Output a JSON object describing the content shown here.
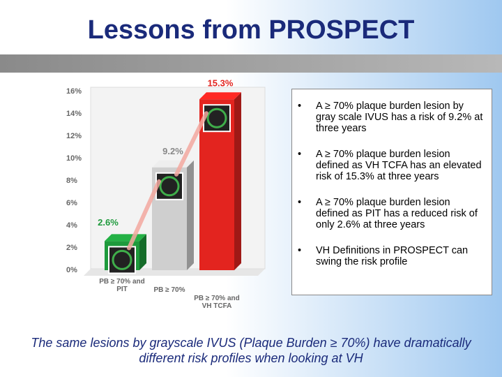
{
  "slide": {
    "title": "Lessons from PROSPECT",
    "bullets": [
      "A ≥ 70% plaque burden lesion by gray scale IVUS has a risk of 9.2% at three years",
      "A ≥ 70% plaque burden lesion defined as VH TCFA has an elevated risk of 15.3% at three years",
      "A ≥ 70% plaque burden lesion defined as PIT has a reduced risk of only 2.6% at three years",
      "VH Definitions in PROSPECT can swing the risk profile"
    ],
    "caption": "The same lesions by grayscale IVUS (Plaque Burden ≥ 70%) have dramatically different risk profiles when looking at VH"
  },
  "chart_data": {
    "type": "bar3d",
    "categories": [
      "PB ≥ 70% and PIT",
      "PB ≥ 70%",
      "PB ≥ 70% and VH TCFA"
    ],
    "values": [
      2.6,
      9.2,
      15.3
    ],
    "value_labels": [
      "2.6%",
      "9.2%",
      "15.3%"
    ],
    "colors": [
      "#1e9a3c",
      "#cfcfcf",
      "#e3241f"
    ],
    "ylim": [
      0,
      16
    ],
    "yticks": [
      {
        "value": 0,
        "label": "0%"
      },
      {
        "value": 2,
        "label": "2%"
      },
      {
        "value": 4,
        "label": "4%"
      },
      {
        "value": 6,
        "label": "6%"
      },
      {
        "value": 8,
        "label": "8%"
      },
      {
        "value": 10,
        "label": "10%"
      },
      {
        "value": 12,
        "label": "12%"
      },
      {
        "value": 14,
        "label": "14%"
      },
      {
        "value": 16,
        "label": "16%"
      }
    ],
    "grid": false
  }
}
